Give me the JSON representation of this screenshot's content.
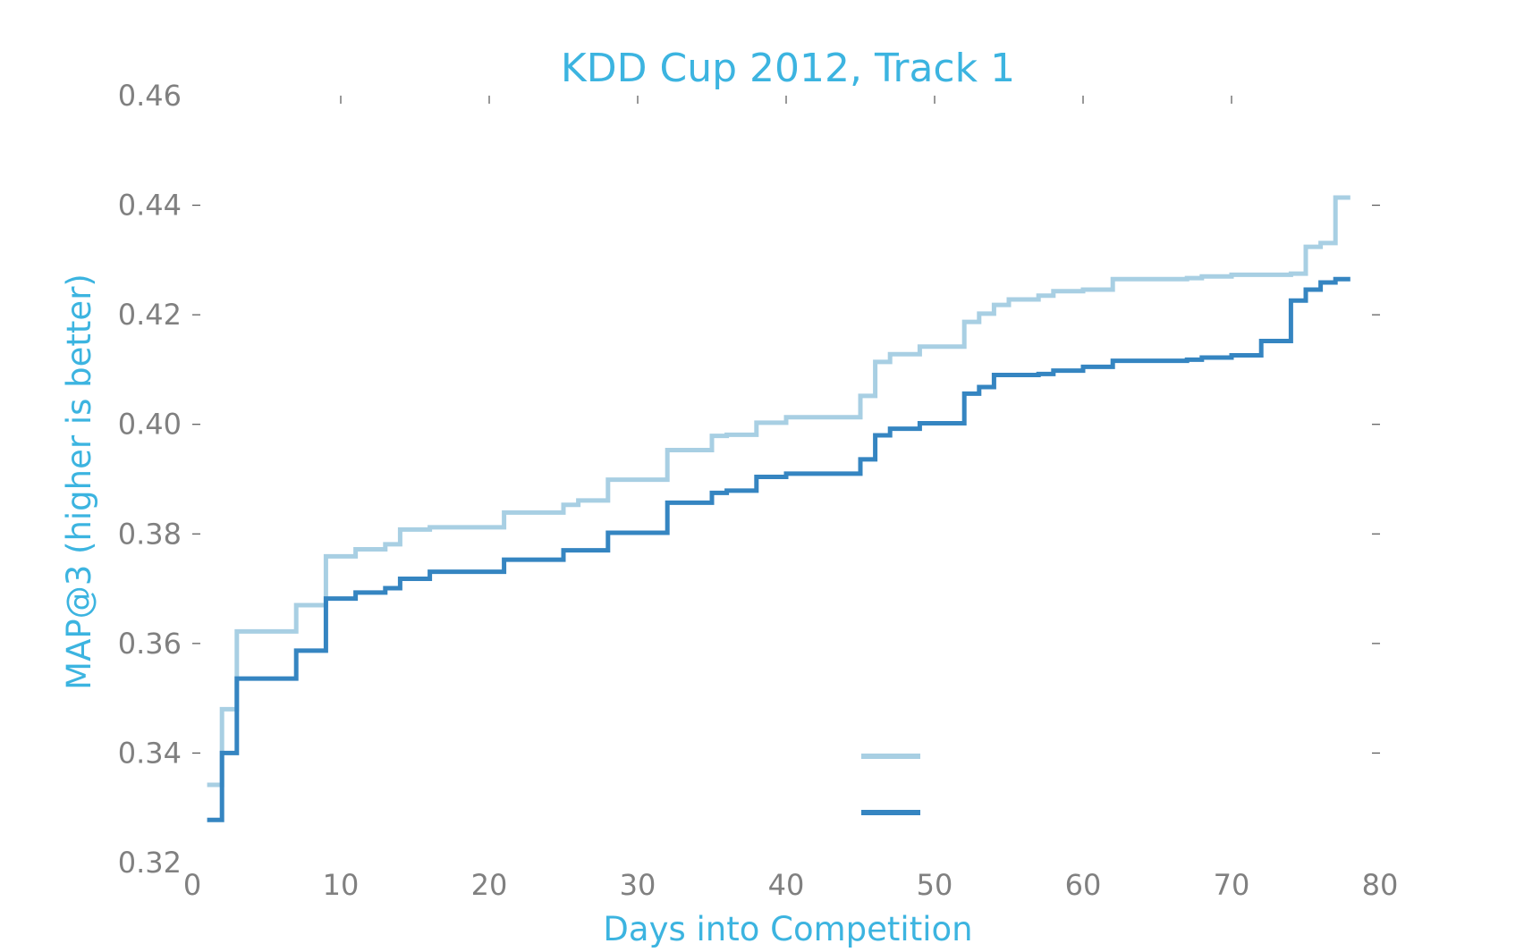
{
  "chart_data": {
    "type": "line",
    "step": true,
    "title": "KDD Cup 2012, Track 1",
    "xlabel": "Days into Competition",
    "ylabel": "MAP@3 (higher is better)",
    "xlim": [
      0,
      80
    ],
    "ylim": [
      0.32,
      0.46
    ],
    "xticks": [
      "0",
      "10",
      "20",
      "30",
      "40",
      "50",
      "60",
      "70",
      "80"
    ],
    "yticks": [
      "0.32",
      "0.34",
      "0.36",
      "0.38",
      "0.40",
      "0.42",
      "0.44",
      "0.46"
    ],
    "grid": false,
    "legend": {
      "placement": "lower-right",
      "entries_text_visible": false
    },
    "colors": {
      "text": "#3cb4e0",
      "tick_text": "#808080",
      "series_light": "#a8cfe3",
      "series_dark": "#3585c1"
    },
    "series": [
      {
        "color": "#a8cfe3",
        "points": [
          [
            1,
            0.3342
          ],
          [
            2,
            0.348
          ],
          [
            3,
            0.3622
          ],
          [
            7,
            0.367
          ],
          [
            9,
            0.3759
          ],
          [
            11,
            0.3772
          ],
          [
            13,
            0.3781
          ],
          [
            14,
            0.3808
          ],
          [
            16,
            0.3812
          ],
          [
            21,
            0.3839
          ],
          [
            25,
            0.3853
          ],
          [
            26,
            0.3861
          ],
          [
            28,
            0.3899
          ],
          [
            32,
            0.3953
          ],
          [
            35,
            0.3979
          ],
          [
            36,
            0.3981
          ],
          [
            38,
            0.4003
          ],
          [
            40,
            0.4013
          ],
          [
            45,
            0.4052
          ],
          [
            46,
            0.4114
          ],
          [
            47,
            0.4128
          ],
          [
            49,
            0.4142
          ],
          [
            52,
            0.4187
          ],
          [
            53,
            0.4202
          ],
          [
            54,
            0.4218
          ],
          [
            55,
            0.4228
          ],
          [
            57,
            0.4235
          ],
          [
            58,
            0.4243
          ],
          [
            60,
            0.4246
          ],
          [
            62,
            0.4265
          ],
          [
            67,
            0.4267
          ],
          [
            68,
            0.427
          ],
          [
            70,
            0.4273
          ],
          [
            74,
            0.4275
          ],
          [
            75,
            0.4324
          ],
          [
            76,
            0.4331
          ],
          [
            77,
            0.4414
          ],
          [
            78,
            0.4414
          ]
        ]
      },
      {
        "color": "#3585c1",
        "points": [
          [
            1,
            0.3278
          ],
          [
            2,
            0.34
          ],
          [
            3,
            0.3536
          ],
          [
            7,
            0.3587
          ],
          [
            9,
            0.3682
          ],
          [
            11,
            0.3693
          ],
          [
            13,
            0.3701
          ],
          [
            14,
            0.3718
          ],
          [
            16,
            0.3731
          ],
          [
            21,
            0.3753
          ],
          [
            25,
            0.377
          ],
          [
            28,
            0.3802
          ],
          [
            32,
            0.3857
          ],
          [
            35,
            0.3875
          ],
          [
            36,
            0.3879
          ],
          [
            38,
            0.3904
          ],
          [
            40,
            0.391
          ],
          [
            45,
            0.3936
          ],
          [
            46,
            0.398
          ],
          [
            47,
            0.3992
          ],
          [
            49,
            0.4002
          ],
          [
            52,
            0.4056
          ],
          [
            53,
            0.4068
          ],
          [
            54,
            0.409
          ],
          [
            57,
            0.4092
          ],
          [
            58,
            0.4098
          ],
          [
            60,
            0.4105
          ],
          [
            62,
            0.4116
          ],
          [
            67,
            0.4118
          ],
          [
            68,
            0.4122
          ],
          [
            70,
            0.4126
          ],
          [
            72,
            0.4152
          ],
          [
            74,
            0.4226
          ],
          [
            75,
            0.4246
          ],
          [
            76,
            0.4259
          ],
          [
            77,
            0.4265
          ],
          [
            78,
            0.4265
          ]
        ]
      }
    ]
  }
}
